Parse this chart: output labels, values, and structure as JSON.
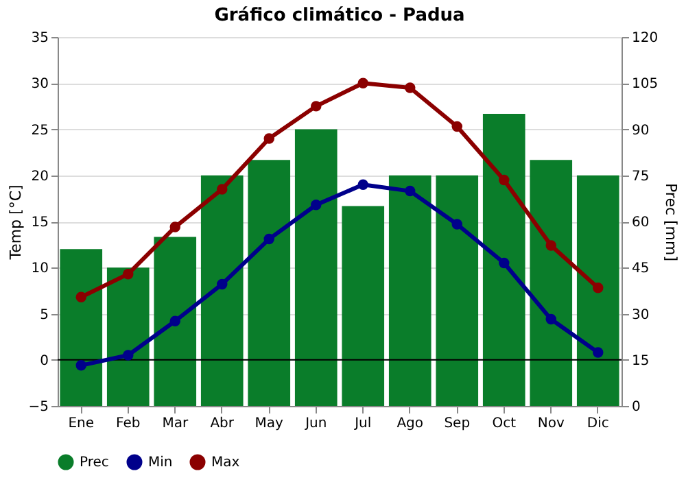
{
  "chart_data": {
    "type": "bar",
    "title": "Gráfico climático - Padua",
    "ylabel": "Temp [°C]",
    "y2label": "Prec [mm]",
    "categories": [
      "Ene",
      "Feb",
      "Mar",
      "Abr",
      "May",
      "Jun",
      "Jul",
      "Ago",
      "Sep",
      "Oct",
      "Nov",
      "Dic"
    ],
    "series": [
      {
        "name": "Prec",
        "axis": "y2",
        "color": "#0a7d2a",
        "values": [
          51,
          45,
          55,
          75,
          80,
          90,
          65,
          75,
          75,
          95,
          80,
          75
        ]
      },
      {
        "name": "Min",
        "type": "line",
        "color": "#00008b",
        "values": [
          -0.6,
          0.5,
          4.2,
          8.2,
          13.1,
          16.8,
          19,
          18.3,
          14.7,
          10.5,
          4.4,
          0.8
        ]
      },
      {
        "name": "Max",
        "type": "line",
        "color": "#8b0000",
        "values": [
          6.8,
          9.3,
          14.4,
          18.5,
          24,
          27.5,
          30,
          29.5,
          25.3,
          19.5,
          12.4,
          7.8
        ]
      }
    ],
    "ylim": [
      -5,
      35
    ],
    "yticks": [
      -5,
      0,
      5,
      10,
      15,
      20,
      25,
      30,
      35
    ],
    "y2lim": [
      0,
      120
    ],
    "y2ticks": [
      0,
      15,
      30,
      45,
      60,
      75,
      90,
      105,
      120
    ],
    "ref_lines": [
      {
        "axis": "y",
        "value": 0,
        "color": "#000000"
      }
    ],
    "grid": "y",
    "legend": "bottom",
    "marker": "circle",
    "line_style": "solid"
  }
}
